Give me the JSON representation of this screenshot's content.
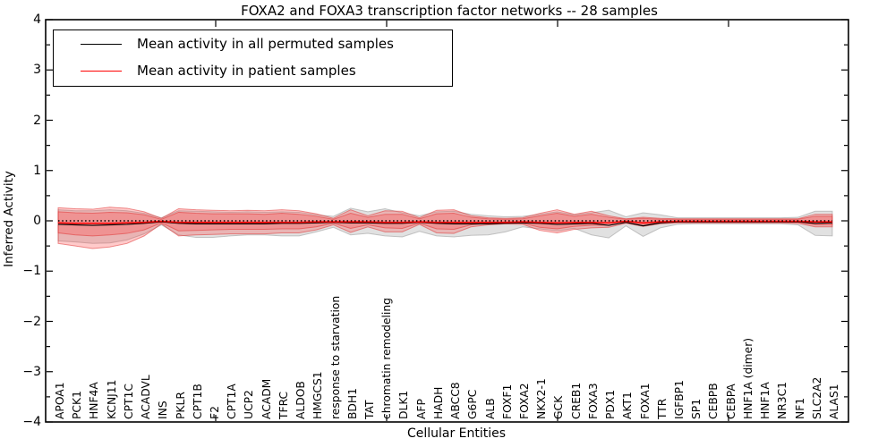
{
  "figure": {
    "title": "FOXA2 and FOXA3 transcription factor networks -- 28 samples",
    "xlabel": "Cellular Entities",
    "ylabel": "Inferred Activity"
  },
  "legend": {
    "position": "upper left",
    "entries": [
      {
        "label": "Mean activity in all permuted samples",
        "color": "#000000"
      },
      {
        "label": "Mean activity in patient samples",
        "color": "#ff0000"
      }
    ]
  },
  "colors": {
    "permuted_mean_line": "#000000",
    "patient_mean_line": "#ff0000",
    "zero_reference_line": "#000000",
    "permuted_band_fill": "#aaaaaa",
    "patient_band_fill": "#ff3b3b",
    "spine": "#000000"
  },
  "chart_data": {
    "type": "line",
    "title": "FOXA2 and FOXA3 transcription factor networks -- 28 samples",
    "xlabel": "Cellular Entities",
    "ylabel": "Inferred Activity",
    "ylim": [
      -4,
      4
    ],
    "yticks": [
      4,
      3,
      2,
      1,
      0,
      -1,
      -2,
      -3,
      -4
    ],
    "grid": false,
    "legend_position": "upper left",
    "categories": [
      "APOA1",
      "PCK1",
      "HNF4A",
      "KCNJ11",
      "CPT1C",
      "ACADVL",
      "INS",
      "PKLR",
      "CPT1B",
      "F2",
      "CPT1A",
      "UCP2",
      "ACADM",
      "TFRC",
      "ALDOB",
      "HMGCS1",
      "response to starvation",
      "BDH1",
      "TAT",
      "chromatin remodeling",
      "DLK1",
      "AFP",
      "HADH",
      "ABCC8",
      "G6PC",
      "ALB",
      "FOXF1",
      "FOXA2",
      "NKX2-1",
      "GCK",
      "CREB1",
      "FOXA3",
      "PDX1",
      "AKT1",
      "FOXA1",
      "TTR",
      "IGFBP1",
      "SP1",
      "CEBPB",
      "CEBPA",
      "HNF1A (dimer)",
      "HNF1A",
      "NR3C1",
      "NF1",
      "SLC2A2",
      "ALAS1"
    ],
    "series": [
      {
        "name": "Mean activity in all permuted samples",
        "color": "#000000",
        "style": "solid",
        "values": [
          -0.07,
          -0.08,
          -0.09,
          -0.08,
          -0.07,
          -0.05,
          -0.02,
          -0.05,
          -0.06,
          -0.06,
          -0.06,
          -0.06,
          -0.06,
          -0.05,
          -0.05,
          -0.04,
          -0.03,
          -0.04,
          -0.04,
          -0.05,
          -0.05,
          -0.03,
          -0.05,
          -0.06,
          -0.06,
          -0.06,
          -0.05,
          -0.04,
          -0.05,
          -0.07,
          -0.06,
          -0.05,
          -0.09,
          -0.03,
          -0.1,
          -0.04,
          -0.02,
          -0.02,
          -0.02,
          -0.02,
          -0.02,
          -0.02,
          -0.02,
          -0.02,
          -0.05,
          -0.04
        ]
      },
      {
        "name": "Mean activity in patient samples",
        "color": "#ff0000",
        "style": "solid",
        "values": [
          -0.04,
          -0.05,
          -0.05,
          -0.05,
          -0.04,
          -0.03,
          -0.01,
          -0.03,
          -0.03,
          -0.03,
          -0.03,
          -0.03,
          -0.03,
          -0.03,
          -0.03,
          -0.02,
          -0.02,
          -0.02,
          -0.02,
          -0.03,
          -0.03,
          -0.02,
          -0.03,
          -0.03,
          -0.03,
          -0.03,
          -0.03,
          -0.02,
          -0.03,
          -0.04,
          -0.03,
          -0.03,
          -0.04,
          -0.01,
          -0.04,
          -0.02,
          -0.01,
          -0.01,
          -0.01,
          -0.01,
          -0.01,
          -0.01,
          -0.01,
          -0.01,
          -0.02,
          -0.02
        ]
      }
    ],
    "zero_reference": {
      "name": "zero reference",
      "value": 0,
      "color": "#000000",
      "style": "dotted"
    },
    "bands": [
      {
        "name": "permuted samples spread",
        "color": "#aaaaaa",
        "edge_color": "#999999",
        "opacity": 0.35,
        "upper": [
          0.22,
          0.2,
          0.2,
          0.22,
          0.2,
          0.15,
          0.06,
          0.2,
          0.19,
          0.18,
          0.17,
          0.18,
          0.17,
          0.18,
          0.17,
          0.12,
          0.09,
          0.25,
          0.18,
          0.24,
          0.16,
          0.1,
          0.18,
          0.19,
          0.13,
          0.1,
          0.08,
          0.09,
          0.13,
          0.18,
          0.12,
          0.16,
          0.21,
          0.08,
          0.16,
          0.12,
          0.06,
          0.06,
          0.06,
          0.06,
          0.06,
          0.06,
          0.06,
          0.07,
          0.19,
          0.19
        ],
        "lower": [
          -0.4,
          -0.42,
          -0.45,
          -0.44,
          -0.38,
          -0.26,
          -0.08,
          -0.28,
          -0.33,
          -0.33,
          -0.3,
          -0.28,
          -0.28,
          -0.3,
          -0.3,
          -0.22,
          -0.13,
          -0.28,
          -0.25,
          -0.3,
          -0.32,
          -0.21,
          -0.3,
          -0.32,
          -0.29,
          -0.28,
          -0.22,
          -0.12,
          -0.16,
          -0.2,
          -0.15,
          -0.28,
          -0.34,
          -0.1,
          -0.31,
          -0.14,
          -0.07,
          -0.06,
          -0.06,
          -0.06,
          -0.06,
          -0.06,
          -0.06,
          -0.08,
          -0.29,
          -0.3
        ]
      },
      {
        "name": "patient samples spread (outer)",
        "color": "#ff3b3b",
        "edge_color": "#e03535",
        "opacity": 0.27,
        "upper": [
          0.26,
          0.24,
          0.23,
          0.27,
          0.25,
          0.18,
          0.05,
          0.24,
          0.22,
          0.21,
          0.2,
          0.21,
          0.2,
          0.22,
          0.2,
          0.14,
          0.05,
          0.22,
          0.1,
          0.2,
          0.19,
          0.06,
          0.21,
          0.22,
          0.1,
          0.06,
          0.05,
          0.06,
          0.15,
          0.22,
          0.13,
          0.19,
          0.1,
          0.04,
          0.07,
          0.05,
          0.04,
          0.04,
          0.04,
          0.04,
          0.04,
          0.04,
          0.04,
          0.04,
          0.13,
          0.13
        ],
        "lower": [
          -0.45,
          -0.5,
          -0.55,
          -0.52,
          -0.45,
          -0.3,
          -0.06,
          -0.3,
          -0.28,
          -0.27,
          -0.26,
          -0.26,
          -0.26,
          -0.24,
          -0.24,
          -0.18,
          -0.08,
          -0.23,
          -0.12,
          -0.22,
          -0.22,
          -0.07,
          -0.24,
          -0.25,
          -0.12,
          -0.08,
          -0.06,
          -0.07,
          -0.19,
          -0.24,
          -0.17,
          -0.14,
          -0.13,
          -0.05,
          -0.11,
          -0.06,
          -0.04,
          -0.04,
          -0.04,
          -0.04,
          -0.04,
          -0.04,
          -0.04,
          -0.05,
          -0.12,
          -0.12
        ]
      },
      {
        "name": "patient samples spread (inner)",
        "color": "#ff3b3b",
        "edge_color": "#e03535",
        "opacity": 0.27,
        "upper": [
          0.18,
          0.16,
          0.15,
          0.17,
          0.16,
          0.12,
          0.03,
          0.17,
          0.15,
          0.14,
          0.14,
          0.14,
          0.13,
          0.15,
          0.13,
          0.09,
          0.03,
          0.15,
          0.07,
          0.13,
          0.13,
          0.04,
          0.14,
          0.15,
          0.07,
          0.04,
          0.03,
          0.04,
          0.1,
          0.15,
          0.09,
          0.13,
          0.07,
          0.03,
          0.05,
          0.03,
          0.03,
          0.03,
          0.03,
          0.03,
          0.03,
          0.03,
          0.03,
          0.03,
          0.09,
          0.09
        ],
        "lower": [
          -0.24,
          -0.28,
          -0.3,
          -0.28,
          -0.25,
          -0.18,
          -0.04,
          -0.2,
          -0.19,
          -0.18,
          -0.17,
          -0.17,
          -0.17,
          -0.16,
          -0.16,
          -0.12,
          -0.05,
          -0.15,
          -0.08,
          -0.14,
          -0.15,
          -0.05,
          -0.16,
          -0.17,
          -0.08,
          -0.05,
          -0.04,
          -0.05,
          -0.13,
          -0.16,
          -0.11,
          -0.09,
          -0.09,
          -0.03,
          -0.07,
          -0.04,
          -0.03,
          -0.03,
          -0.03,
          -0.03,
          -0.03,
          -0.03,
          -0.03,
          -0.03,
          -0.08,
          -0.08
        ]
      }
    ]
  }
}
